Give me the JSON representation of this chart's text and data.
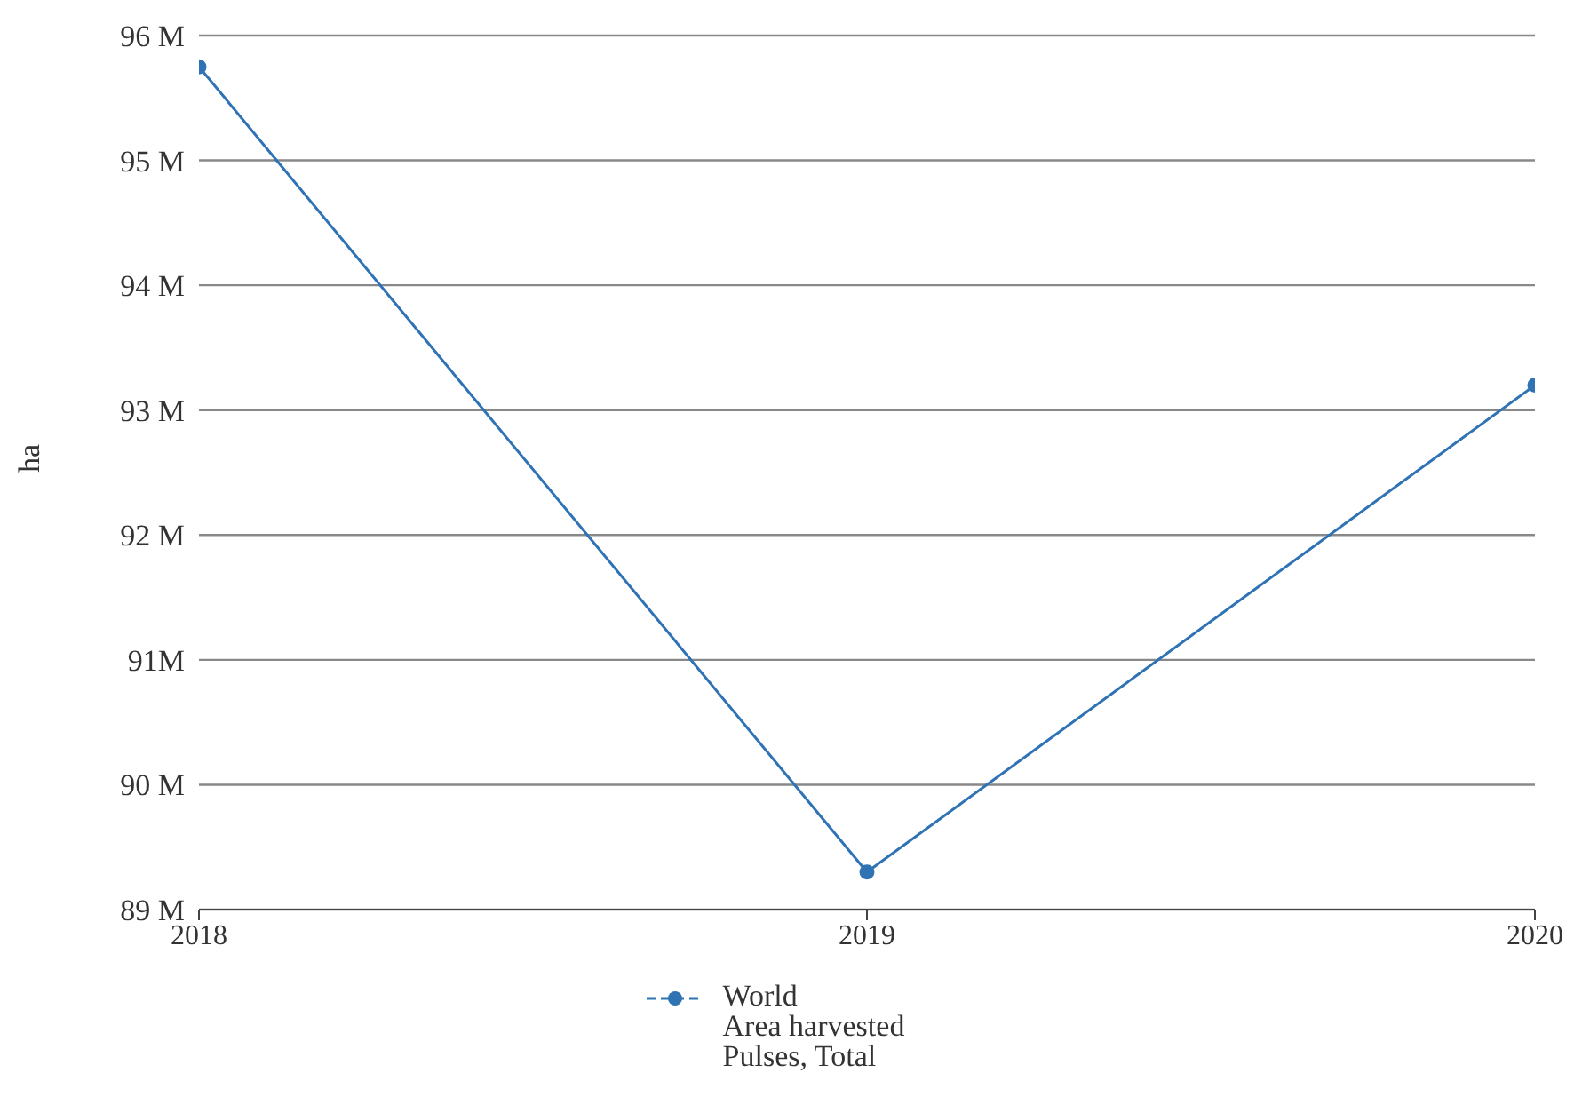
{
  "chart_data": {
    "type": "line",
    "ylabel": "ha",
    "x": [
      2018,
      2019,
      2020
    ],
    "series": [
      {
        "name": "World\nArea harvested\nPulses, Total",
        "color": "#2f73b5",
        "values": [
          95750000,
          89300000,
          93200000
        ]
      }
    ],
    "xlim": [
      2018,
      2020
    ],
    "xticks": [
      2018,
      2019,
      2020
    ],
    "ylim": [
      89000000,
      96000000
    ],
    "yticks": [
      {
        "value": 89000000,
        "label": "89 M"
      },
      {
        "value": 90000000,
        "label": "90 M"
      },
      {
        "value": 91000000,
        "label": "91M"
      },
      {
        "value": 92000000,
        "label": "92 M"
      },
      {
        "value": 93000000,
        "label": "93 M"
      },
      {
        "value": 94000000,
        "label": "94 M"
      },
      {
        "value": 95000000,
        "label": "95 M"
      },
      {
        "value": 96000000,
        "label": "96 M"
      }
    ],
    "grid": "y",
    "legend": "bottom",
    "marker": "circle",
    "line_style": "solid"
  }
}
